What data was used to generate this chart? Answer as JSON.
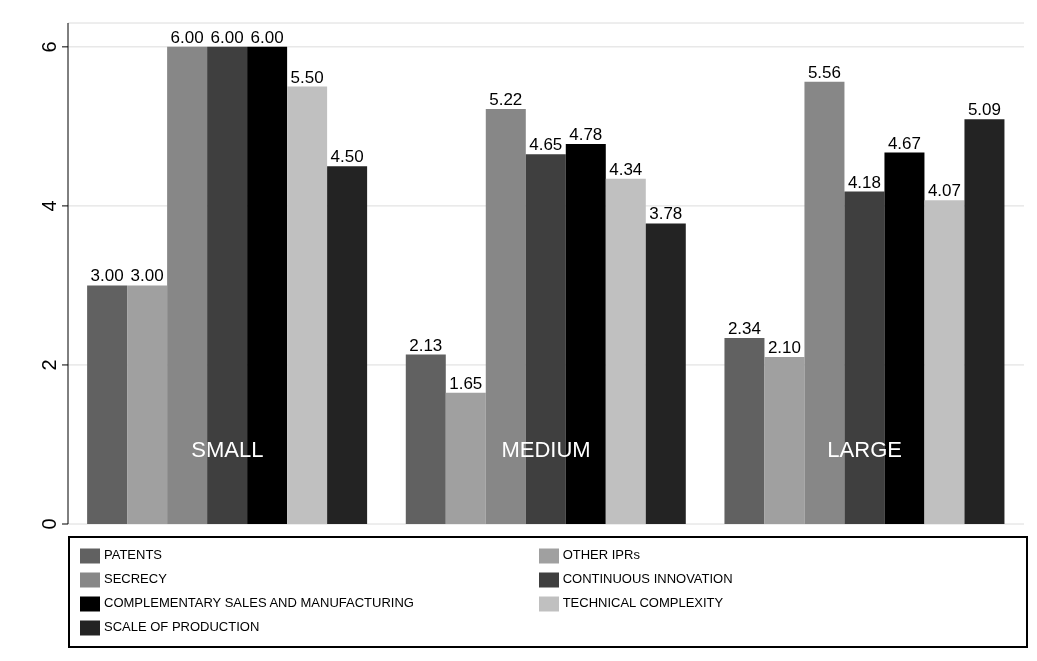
{
  "chart_data": {
    "type": "bar",
    "categories": [
      "SMALL",
      "MEDIUM",
      "LARGE"
    ],
    "series": [
      {
        "name": "PATENTS",
        "color": "#616161",
        "values": [
          3.0,
          2.13,
          2.34
        ],
        "value_labels": [
          "3.00",
          "2.13",
          "2.34"
        ]
      },
      {
        "name": "OTHER IPRs",
        "color": "#a0a0a0",
        "values": [
          3.0,
          1.65,
          2.1
        ],
        "value_labels": [
          "3.00",
          "1.65",
          "2.10"
        ]
      },
      {
        "name": "SECRECY",
        "color": "#878787",
        "values": [
          6.0,
          5.22,
          5.56
        ],
        "value_labels": [
          "6.00",
          "5.22",
          "5.56"
        ]
      },
      {
        "name": "CONTINUOUS INNOVATION",
        "color": "#3f3f3f",
        "values": [
          6.0,
          4.65,
          4.18
        ],
        "value_labels": [
          "6.00",
          "4.65",
          "4.18"
        ]
      },
      {
        "name": "COMPLEMENTARY SALES AND MANUFACTURING",
        "color": "#000000",
        "values": [
          6.0,
          4.78,
          4.67
        ],
        "value_labels": [
          "6.00",
          "4.78",
          "4.67"
        ]
      },
      {
        "name": "TECHNICAL COMPLEXITY",
        "color": "#c0c0c0",
        "values": [
          5.5,
          4.34,
          4.07
        ],
        "value_labels": [
          "5.50",
          "4.34",
          "4.07"
        ]
      },
      {
        "name": "SCALE OF PRODUCTION",
        "color": "#232323",
        "values": [
          4.5,
          3.78,
          5.09
        ],
        "value_labels": [
          "4.50",
          "3.78",
          "5.09"
        ]
      }
    ],
    "ylim": [
      0,
      6.3
    ],
    "yticks": [
      0,
      2,
      4,
      6
    ],
    "grid": "y",
    "legend": "bottom"
  }
}
